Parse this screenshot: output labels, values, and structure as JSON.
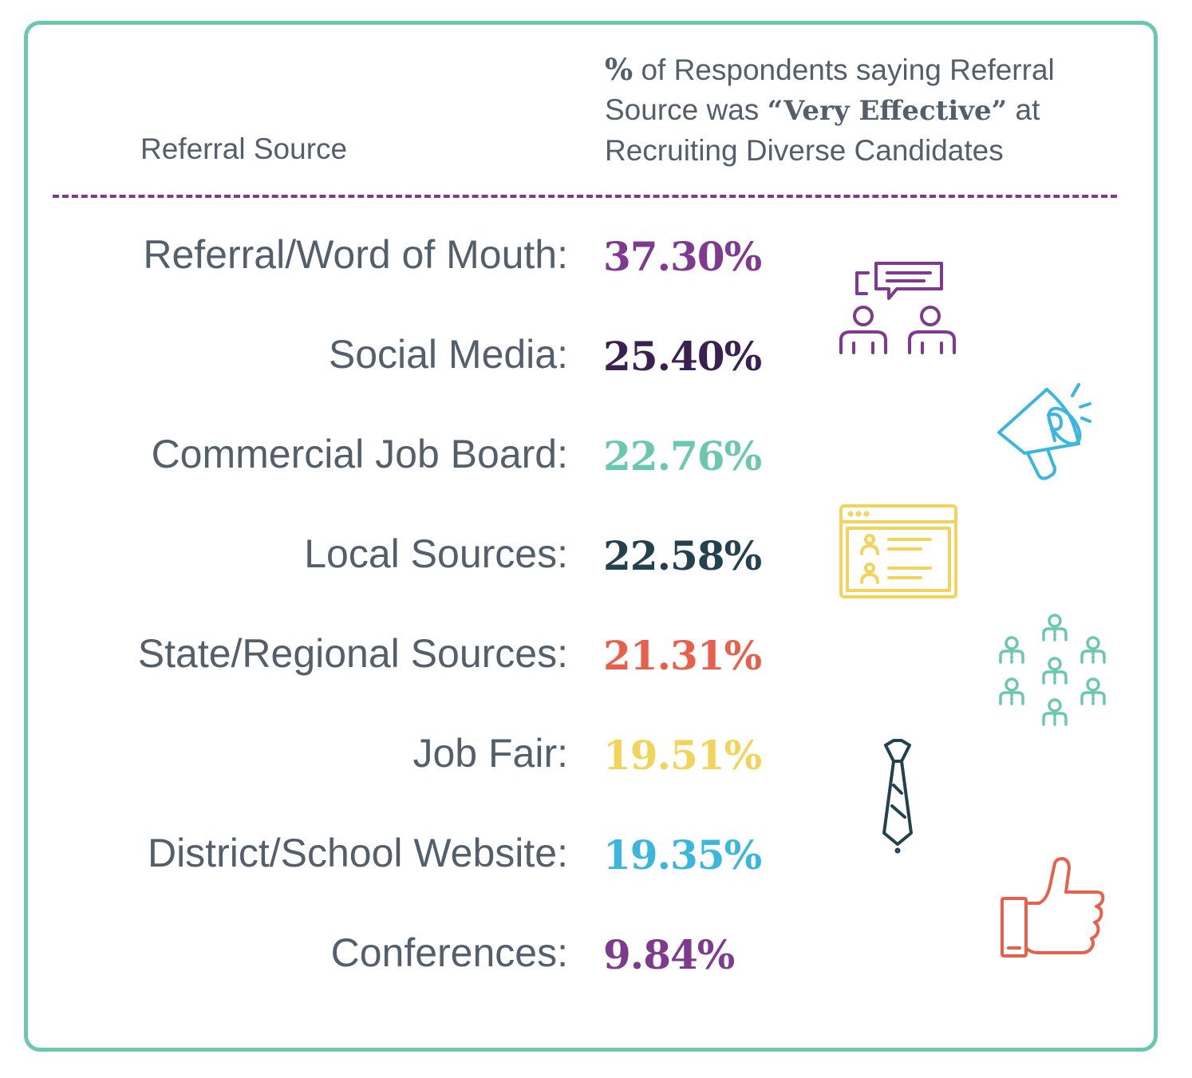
{
  "header": {
    "left_label": "Referral Source",
    "right_pct_sign": "%",
    "right_line1_rest": " of Respondents saying Referral",
    "right_line2_pre": "Source was ",
    "right_line2_emph": "“Very Effective”",
    "right_line2_post": " at",
    "right_line3": "Recruiting Diverse Candidates"
  },
  "chart_data": {
    "type": "table",
    "columns": [
      "Referral Source",
      "% of Respondents saying Referral Source was “Very Effective” at Recruiting Diverse Candidates"
    ],
    "rows": [
      {
        "label": "Referral/Word of Mouth:",
        "value_text": "37.30%",
        "value": 37.3,
        "color": "#7f3a8f"
      },
      {
        "label": "Social Media:",
        "value_text": "25.40%",
        "value": 25.4,
        "color": "#3b2150"
      },
      {
        "label": "Commercial Job Board:",
        "value_text": "22.76%",
        "value": 22.76,
        "color": "#6cc7af"
      },
      {
        "label": "Local Sources:",
        "value_text": "22.58%",
        "value": 22.58,
        "color": "#23414e"
      },
      {
        "label": "State/Regional Sources:",
        "value_text": "21.31%",
        "value": 21.31,
        "color": "#e8604b"
      },
      {
        "label": "Job Fair:",
        "value_text": "19.51%",
        "value": 19.51,
        "color": "#f2d45c"
      },
      {
        "label": "District/School Website:",
        "value_text": "19.35%",
        "value": 19.35,
        "color": "#3bb6dd"
      },
      {
        "label": "Conferences:",
        "value_text": "9.84%",
        "value": 9.84,
        "color": "#7f3a8f"
      }
    ]
  },
  "icons": [
    {
      "name": "conversation-people-icon",
      "color": "#7f3a8f"
    },
    {
      "name": "megaphone-icon",
      "color": "#3bb6dd"
    },
    {
      "name": "candidate-list-window-icon",
      "color": "#f2d45c"
    },
    {
      "name": "crowd-people-icon",
      "color": "#6cc7af"
    },
    {
      "name": "necktie-icon",
      "color": "#23414e"
    },
    {
      "name": "thumbs-up-icon",
      "color": "#e8604b"
    }
  ]
}
